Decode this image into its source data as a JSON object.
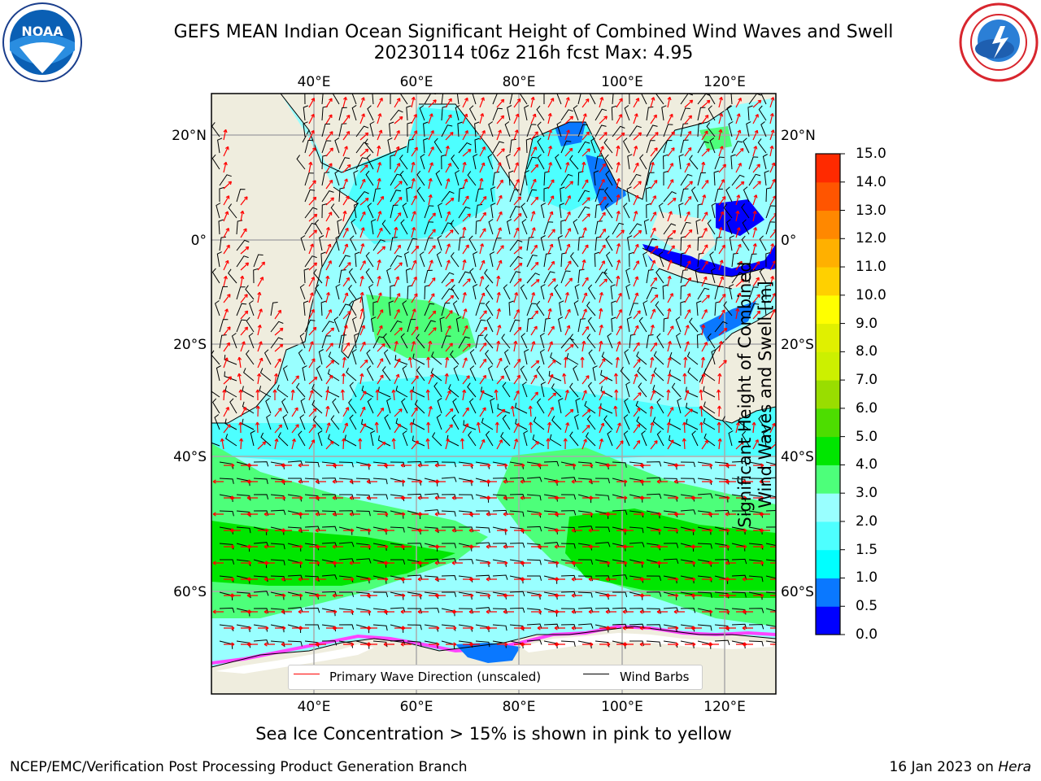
{
  "title": {
    "line1": "GEFS MEAN Indian Ocean Significant Height of Combined Wind Waves and Swell",
    "line2": "20230114 t06z 216h fcst   Max: 4.95"
  },
  "logos": {
    "left": {
      "icon": "noaa-logo-icon",
      "text": "NOAA"
    },
    "right": {
      "icon": "nws-logo-icon"
    }
  },
  "map": {
    "lon_ticks": [
      "40°E",
      "60°E",
      "80°E",
      "100°E",
      "120°E"
    ],
    "lat_ticks": [
      "20°N",
      "0°",
      "20°S",
      "40°S",
      "60°S"
    ],
    "land_color": "#efedde",
    "grid": true
  },
  "legend": {
    "wave_direction": "Primary Wave Direction (unscaled)",
    "wind_barbs": "Wind Barbs",
    "wave_color": "#ff0000",
    "barb_color": "#000000"
  },
  "colorbar": {
    "label_line1": "Significant Height of Combined",
    "label_line2": "Wind Waves and Swell [m]",
    "ticks": [
      "0.0",
      "0.5",
      "1.0",
      "1.5",
      "2.0",
      "3.0",
      "4.0",
      "5.0",
      "6.0",
      "7.0",
      "8.0",
      "9.0",
      "10.0",
      "11.0",
      "12.0",
      "13.0",
      "14.0",
      "15.0"
    ],
    "colors": [
      "#0000ff",
      "#0a78ff",
      "#00ffff",
      "#4dffff",
      "#99ffff",
      "#4dff7a",
      "#00e600",
      "#4ddd00",
      "#99dd00",
      "#ccf000",
      "#e0f000",
      "#ffff00",
      "#ffd000",
      "#ffb000",
      "#ff8800",
      "#ff5500",
      "#ff2a00",
      "#ff0000"
    ]
  },
  "caption": "Sea Ice Concentration > 15% is shown in pink to yellow",
  "footer": {
    "left": "NCEP/EMC/Verification Post Processing Product Generation Branch",
    "right_prefix": "16 Jan 2023 on ",
    "right_host": "Hera"
  }
}
